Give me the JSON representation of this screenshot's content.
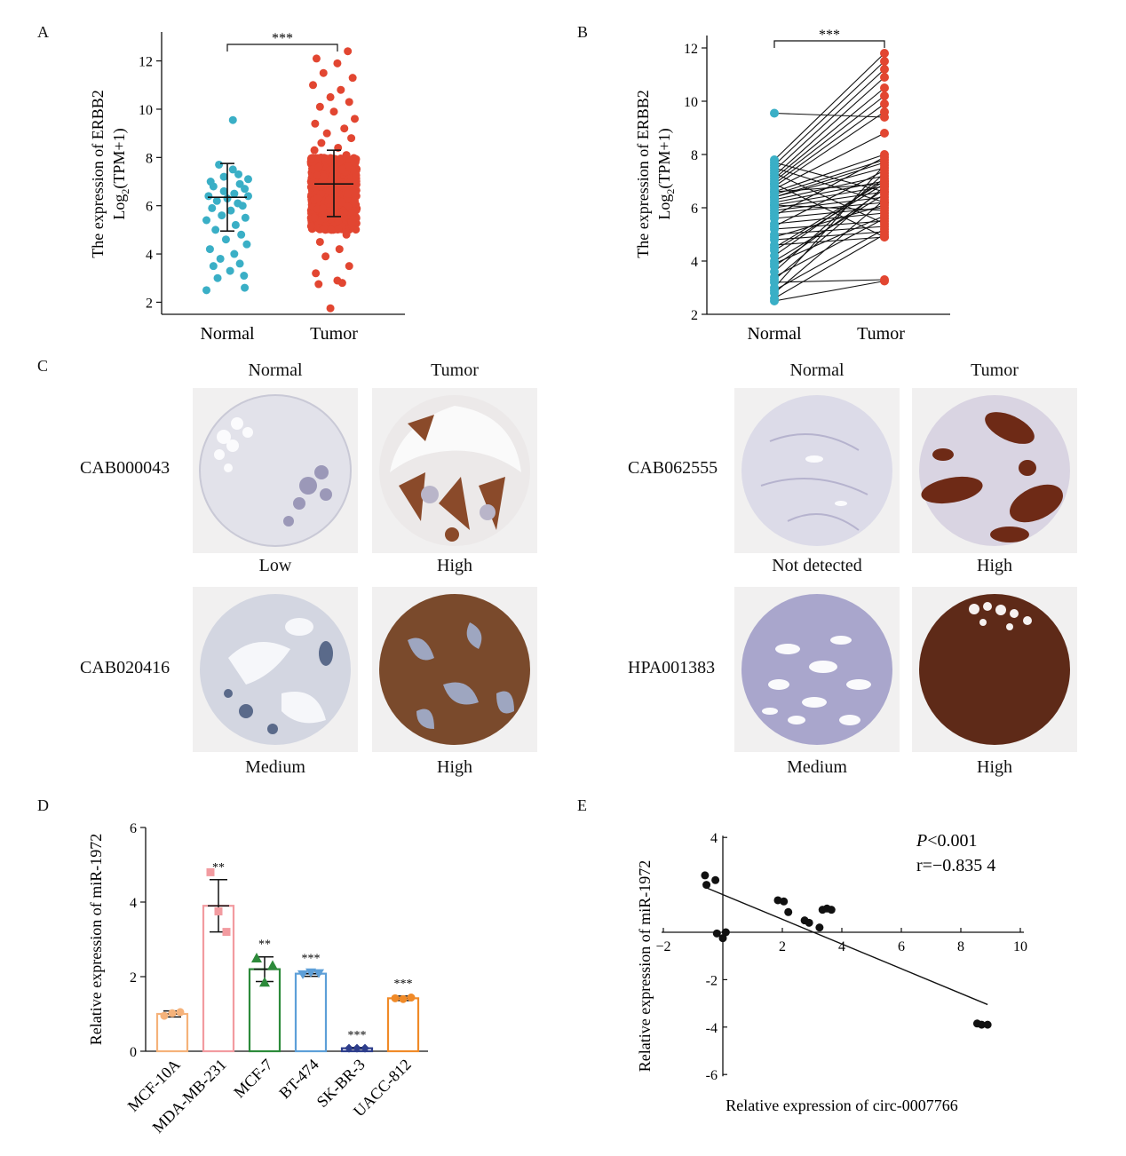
{
  "panels": {
    "A": "A",
    "B": "B",
    "C": "C",
    "D": "D",
    "E": "E"
  },
  "panel_a": {
    "ylabel_line1": "The expression of ERBB2",
    "ylabel_line2_pre": "Log",
    "ylabel_line2_sub": "2",
    "ylabel_line2_post": "(TPM+1)",
    "significance": "***",
    "categories": [
      "Normal",
      "Tumor"
    ],
    "yticks": [
      "2",
      "4",
      "6",
      "8",
      "10",
      "12"
    ]
  },
  "panel_b": {
    "ylabel_line1": "The expression of ERBB2",
    "ylabel_line2_pre": "Log",
    "ylabel_line2_sub": "2",
    "ylabel_line2_post": "(TPM+1)",
    "significance": "***",
    "categories": [
      "Normal",
      "Tumor"
    ],
    "yticks": [
      "2",
      "4",
      "6",
      "8",
      "10",
      "12"
    ]
  },
  "panel_c": {
    "left": {
      "col_headers": [
        "Normal",
        "Tumor"
      ],
      "rows": [
        {
          "antibody": "CAB000043",
          "labels": [
            "Low",
            "High"
          ]
        },
        {
          "antibody": "CAB020416",
          "labels": [
            "Medium",
            "High"
          ]
        }
      ]
    },
    "right": {
      "col_headers": [
        "Normal",
        "Tumor"
      ],
      "rows": [
        {
          "antibody": "CAB062555",
          "labels": [
            "Not detected",
            "High"
          ]
        },
        {
          "antibody": "HPA001383",
          "labels": [
            "Medium",
            "High"
          ]
        }
      ]
    }
  },
  "panel_d": {
    "ylabel": "Relative expression of miR-1972",
    "yticks": [
      "0",
      "2",
      "4",
      "6"
    ]
  },
  "panel_e": {
    "xlabel": "Relative expression of circ-0007766",
    "ylabel": "Relative expression of miR-1972",
    "stat_p_label": "P",
    "stat_p_value": "<0.001",
    "stat_r": "r=−0.835 4",
    "xticks": [
      "−2",
      "2",
      "4",
      "6",
      "8",
      "10"
    ],
    "yticks": [
      "4",
      "-2",
      "-4",
      "-6"
    ]
  },
  "chart_data": [
    {
      "type": "scatter",
      "panel": "A",
      "categories": [
        "Normal",
        "Tumor"
      ],
      "ylabel": "The expression of ERBB2 Log2(TPM+1)",
      "ylim": [
        1.5,
        13.2
      ],
      "summary": [
        {
          "category": "Normal",
          "mean": 6.35,
          "sd_low": 4.95,
          "sd_high": 7.75,
          "color": "#3aafc6"
        },
        {
          "category": "Tumor",
          "mean": 6.9,
          "sd_low": 5.55,
          "sd_high": 8.3,
          "color": "#e24631"
        }
      ],
      "normal_points": [
        [
          -0.12,
          7.7
        ],
        [
          0.08,
          7.5
        ],
        [
          0.18,
          6.9
        ],
        [
          -0.2,
          6.8
        ],
        [
          0.25,
          6.7
        ],
        [
          -0.05,
          6.6
        ],
        [
          0.1,
          6.5
        ],
        [
          -0.27,
          6.4
        ],
        [
          0.3,
          6.4
        ],
        [
          0.0,
          6.3
        ],
        [
          -0.15,
          6.2
        ],
        [
          0.15,
          6.1
        ],
        [
          0.22,
          6.0
        ],
        [
          -0.22,
          5.9
        ],
        [
          0.05,
          5.8
        ],
        [
          -0.08,
          5.6
        ],
        [
          0.26,
          5.5
        ],
        [
          -0.3,
          5.4
        ],
        [
          0.12,
          5.2
        ],
        [
          -0.17,
          5.0
        ],
        [
          0.2,
          4.8
        ],
        [
          -0.02,
          4.6
        ],
        [
          0.28,
          4.4
        ],
        [
          -0.25,
          4.2
        ],
        [
          0.1,
          4.0
        ],
        [
          -0.1,
          3.8
        ],
        [
          0.18,
          3.6
        ],
        [
          -0.2,
          3.5
        ],
        [
          0.04,
          3.3
        ],
        [
          0.24,
          3.1
        ],
        [
          -0.14,
          3.0
        ],
        [
          -0.3,
          2.5
        ],
        [
          0.25,
          2.6
        ],
        [
          0.08,
          9.55
        ],
        [
          -0.05,
          7.2
        ],
        [
          0.16,
          7.3
        ],
        [
          -0.24,
          7.0
        ],
        [
          0.3,
          7.1
        ]
      ],
      "tumor_points": [
        [
          -0.25,
          12.1
        ],
        [
          0.2,
          12.4
        ],
        [
          0.05,
          11.9
        ],
        [
          -0.15,
          11.5
        ],
        [
          0.27,
          11.3
        ],
        [
          -0.3,
          11.0
        ],
        [
          0.1,
          10.8
        ],
        [
          -0.05,
          10.5
        ],
        [
          0.22,
          10.3
        ],
        [
          -0.2,
          10.1
        ],
        [
          0.0,
          9.9
        ],
        [
          0.3,
          9.6
        ],
        [
          -0.27,
          9.4
        ],
        [
          0.15,
          9.2
        ],
        [
          -0.1,
          9.0
        ],
        [
          0.25,
          8.8
        ],
        [
          -0.18,
          8.6
        ],
        [
          0.06,
          8.4
        ],
        [
          -0.28,
          8.3
        ],
        [
          0.18,
          8.1
        ],
        [
          -0.08,
          7.9
        ],
        [
          0.29,
          7.8
        ],
        [
          -0.22,
          7.6
        ],
        [
          0.12,
          7.5
        ],
        [
          0.0,
          7.3
        ],
        [
          -0.14,
          7.2
        ],
        [
          0.24,
          7.0
        ],
        [
          -0.3,
          6.9
        ],
        [
          0.08,
          6.8
        ],
        [
          -0.06,
          6.6
        ],
        [
          0.2,
          6.5
        ],
        [
          -0.24,
          6.3
        ],
        [
          0.3,
          6.2
        ],
        [
          0.02,
          6.0
        ],
        [
          -0.16,
          5.9
        ],
        [
          0.14,
          5.7
        ],
        [
          -0.28,
          5.5
        ],
        [
          0.26,
          5.3
        ],
        [
          -0.04,
          5.0
        ],
        [
          0.18,
          4.8
        ],
        [
          -0.2,
          4.5
        ],
        [
          0.08,
          4.2
        ],
        [
          -0.12,
          3.9
        ],
        [
          0.22,
          3.5
        ],
        [
          -0.26,
          3.2
        ],
        [
          0.05,
          2.9
        ],
        [
          -0.22,
          2.75
        ],
        [
          0.12,
          2.8
        ],
        [
          -0.05,
          1.75
        ]
      ],
      "tumor_dense_band": [
        5.0,
        8.0
      ]
    },
    {
      "type": "line",
      "panel": "B",
      "categories": [
        "Normal",
        "Tumor"
      ],
      "ylabel": "The expression of ERBB2 Log2(TPM+1)",
      "ylim": [
        2,
        12.4
      ],
      "colors": {
        "Normal": "#3aafc6",
        "Tumor": "#e24631"
      },
      "pairs": [
        [
          9.55,
          9.4
        ],
        [
          7.8,
          11.8
        ],
        [
          7.6,
          11.5
        ],
        [
          7.4,
          11.2
        ],
        [
          7.2,
          10.9
        ],
        [
          7.1,
          10.5
        ],
        [
          7.0,
          10.2
        ],
        [
          6.9,
          9.9
        ],
        [
          6.8,
          9.6
        ],
        [
          6.7,
          8.8
        ],
        [
          6.6,
          8.0
        ],
        [
          6.5,
          7.8
        ],
        [
          6.4,
          7.5
        ],
        [
          6.3,
          7.2
        ],
        [
          6.2,
          7.0
        ],
        [
          6.1,
          6.8
        ],
        [
          6.0,
          6.6
        ],
        [
          5.9,
          6.4
        ],
        [
          5.8,
          6.2
        ],
        [
          5.6,
          6.0
        ],
        [
          5.4,
          5.8
        ],
        [
          5.2,
          5.5
        ],
        [
          5.0,
          5.3
        ],
        [
          4.8,
          5.1
        ],
        [
          4.6,
          4.9
        ],
        [
          4.4,
          6.9
        ],
        [
          4.2,
          7.1
        ],
        [
          4.0,
          6.5
        ],
        [
          3.8,
          6.7
        ],
        [
          3.6,
          7.3
        ],
        [
          3.4,
          5.6
        ],
        [
          3.2,
          3.3
        ],
        [
          3.0,
          7.6
        ],
        [
          2.8,
          6.3
        ],
        [
          2.6,
          5.0
        ],
        [
          2.5,
          3.25
        ],
        [
          7.7,
          6.6
        ],
        [
          7.5,
          6.2
        ],
        [
          7.3,
          5.4
        ],
        [
          6.9,
          4.9
        ],
        [
          6.6,
          6.9
        ],
        [
          6.4,
          7.7
        ],
        [
          6.1,
          5.9
        ],
        [
          5.7,
          7.9
        ],
        [
          5.3,
          7.4
        ],
        [
          4.9,
          6.1
        ],
        [
          4.5,
          7.0
        ],
        [
          3.9,
          5.7
        ],
        [
          3.3,
          6.8
        ],
        [
          2.9,
          5.2
        ]
      ]
    },
    {
      "type": "bar",
      "panel": "D",
      "ylabel": "Relative expression of miR-1972",
      "ylim": [
        0,
        6
      ],
      "categories": [
        "MCF-10A",
        "MDA-MB-231",
        "MCF-7",
        "BT-474",
        "SK-BR-3",
        "UACC-812"
      ],
      "values": [
        1.0,
        3.9,
        2.2,
        2.08,
        0.08,
        1.42
      ],
      "sd": [
        0.08,
        0.7,
        0.33,
        0.07,
        0.02,
        0.06
      ],
      "points": [
        [
          0.95,
          1.02,
          1.05
        ],
        [
          4.8,
          3.75,
          3.2
        ],
        [
          2.5,
          1.85,
          2.3
        ],
        [
          2.05,
          2.1,
          2.08
        ],
        [
          0.08,
          0.08,
          0.08
        ],
        [
          1.42,
          1.4,
          1.44
        ]
      ],
      "significance": [
        "",
        "**",
        "**",
        "***",
        "***",
        "***"
      ],
      "colors": [
        "#f5b27a",
        "#f29ba0",
        "#2c8a3a",
        "#5d9fd8",
        "#2e3e8c",
        "#f08a28"
      ],
      "markers": [
        "circle",
        "square",
        "triangle-up",
        "triangle-down",
        "diamond",
        "circle"
      ]
    },
    {
      "type": "scatter",
      "panel": "E",
      "xlabel": "Relative expression of circ-0007766",
      "ylabel": "Relative expression of miR-1972",
      "xlim": [
        -2,
        10
      ],
      "ylim": [
        -6,
        4
      ],
      "points": [
        [
          -0.6,
          2.4
        ],
        [
          -0.55,
          2.0
        ],
        [
          -0.25,
          2.2
        ],
        [
          -0.2,
          -0.05
        ],
        [
          0.0,
          -0.25
        ],
        [
          0.1,
          0.0
        ],
        [
          1.85,
          1.35
        ],
        [
          2.05,
          1.3
        ],
        [
          2.2,
          0.85
        ],
        [
          2.75,
          0.5
        ],
        [
          2.9,
          0.4
        ],
        [
          3.25,
          0.2
        ],
        [
          3.35,
          0.95
        ],
        [
          3.5,
          1.0
        ],
        [
          3.65,
          0.95
        ],
        [
          8.55,
          -3.85
        ],
        [
          8.7,
          -3.9
        ],
        [
          8.9,
          -3.9
        ]
      ],
      "fit_line": [
        [
          -0.6,
          1.9
        ],
        [
          8.9,
          -3.05
        ]
      ],
      "annotations": [
        "P<0.001",
        "r=−0.835 4"
      ]
    }
  ]
}
